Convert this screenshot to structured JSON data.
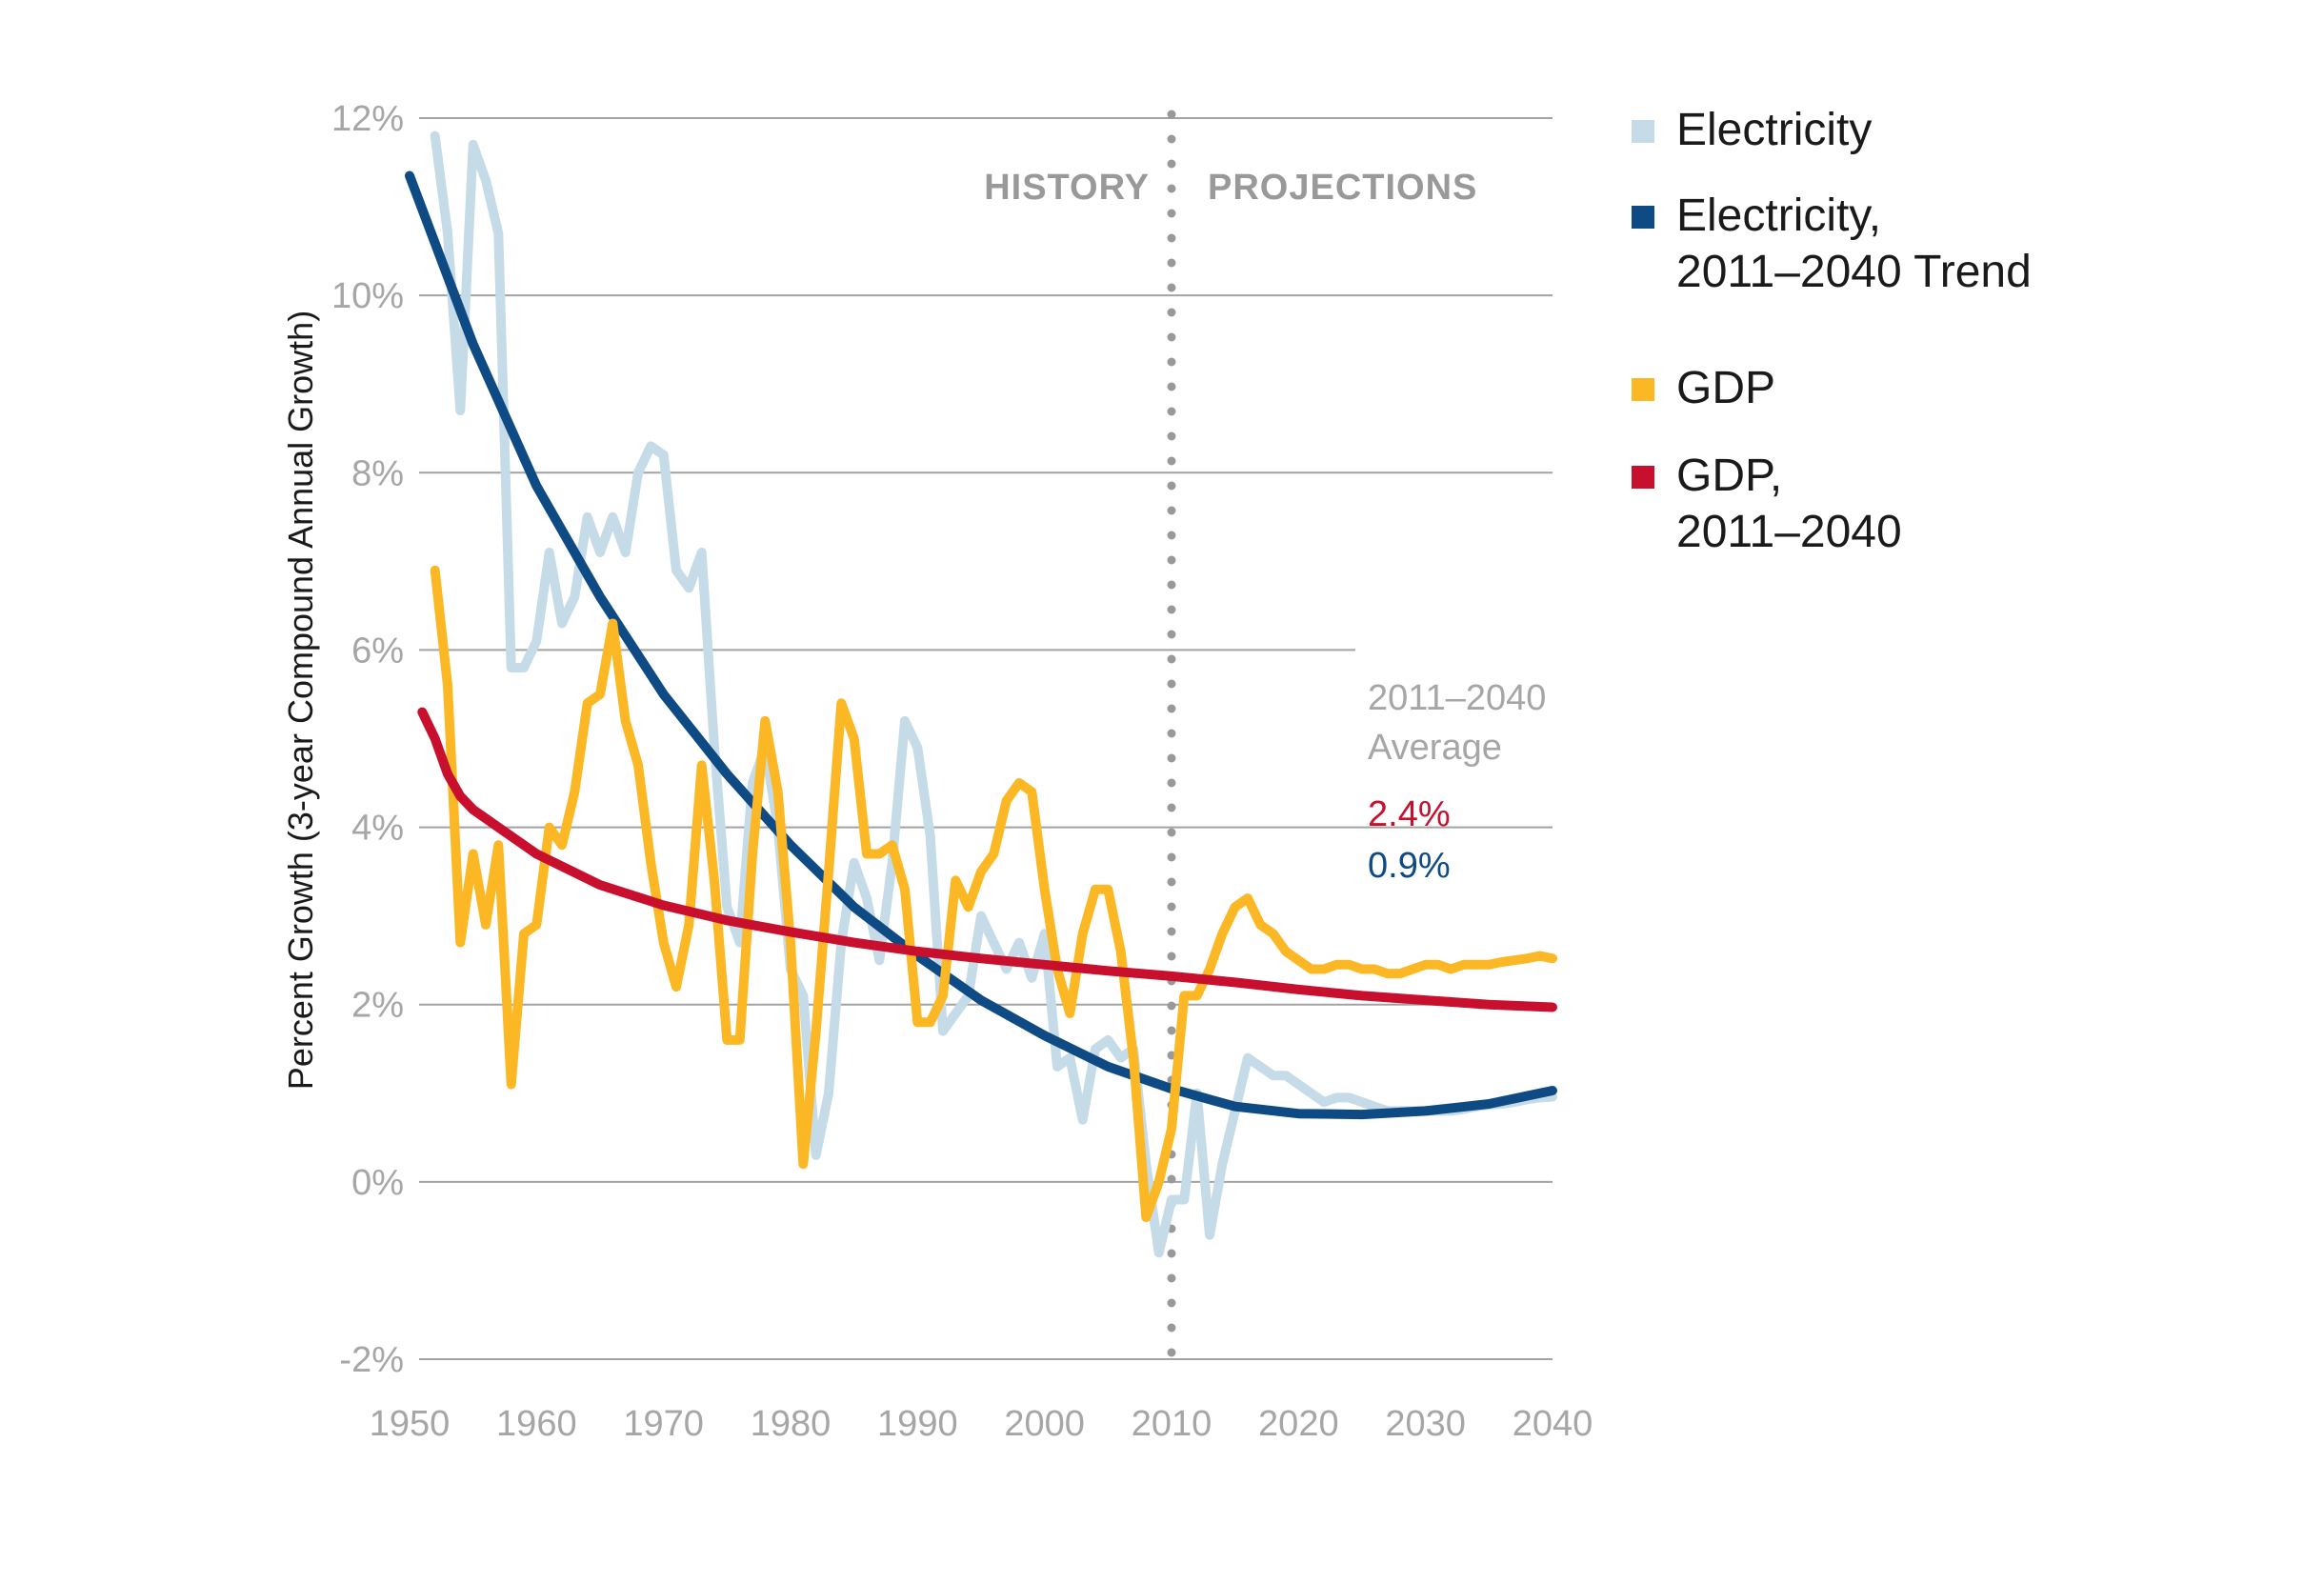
{
  "chart_data": {
    "type": "line",
    "ylabel": "Percent Growth (3-year Compound Annual Growth)",
    "xlim": [
      1950,
      2040
    ],
    "ylim": [
      -2,
      12
    ],
    "x_ticks": [
      "1950",
      "1960",
      "1970",
      "1980",
      "1990",
      "2000",
      "2010",
      "2020",
      "2030",
      "2040"
    ],
    "y_ticks": [
      "-2%",
      "0%",
      "2%",
      "4%",
      "6%",
      "8%",
      "10%",
      "12%"
    ],
    "y_tick_values": [
      -2,
      0,
      2,
      4,
      6,
      8,
      10,
      12
    ],
    "grid": true,
    "divider": {
      "x": 2010,
      "left_label": "HISTORY",
      "right_label": "PROJECTIONS"
    },
    "average_annotation": {
      "label_line1": "2011–2040",
      "label_line2": "Average",
      "values": [
        {
          "text": "2.4%",
          "color": "#c8102e"
        },
        {
          "text": "0.9%",
          "color": "#0e4a84"
        }
      ]
    },
    "series": [
      {
        "name": "Electricity",
        "color": "#c5dbe8",
        "x": [
          1952,
          1953,
          1954,
          1955,
          1956,
          1957,
          1958,
          1959,
          1960,
          1961,
          1962,
          1963,
          1964,
          1965,
          1966,
          1967,
          1968,
          1969,
          1970,
          1971,
          1972,
          1973,
          1974,
          1975,
          1976,
          1977,
          1978,
          1979,
          1980,
          1981,
          1982,
          1983,
          1984,
          1985,
          1986,
          1987,
          1988,
          1989,
          1990,
          1991,
          1992,
          1993,
          1994,
          1995,
          1996,
          1997,
          1998,
          1999,
          2000,
          2001,
          2002,
          2003,
          2004,
          2005,
          2006,
          2007,
          2008,
          2009,
          2010,
          2011,
          2012,
          2013,
          2014,
          2015,
          2016,
          2017,
          2018,
          2019,
          2020,
          2021,
          2022,
          2023,
          2024,
          2025,
          2026,
          2027,
          2028,
          2029,
          2030,
          2031,
          2032,
          2033,
          2034,
          2035,
          2036,
          2037,
          2038,
          2039,
          2040
        ],
        "values": [
          11.8,
          10.7,
          8.7,
          11.7,
          11.3,
          10.7,
          5.8,
          5.8,
          6.1,
          7.1,
          6.3,
          6.6,
          7.5,
          7.1,
          7.5,
          7.1,
          8.0,
          8.3,
          8.2,
          6.9,
          6.7,
          7.1,
          4.9,
          3.1,
          2.7,
          4.5,
          4.9,
          4.0,
          2.4,
          2.1,
          0.3,
          1.0,
          2.7,
          3.6,
          3.2,
          2.5,
          3.6,
          5.2,
          4.9,
          3.9,
          1.7,
          1.9,
          2.1,
          3.0,
          2.7,
          2.4,
          2.7,
          2.3,
          2.8,
          1.3,
          1.4,
          0.7,
          1.5,
          1.6,
          1.4,
          1.5,
          0.2,
          -0.8,
          -0.2,
          -0.2,
          1.0,
          -0.6,
          0.2,
          0.8,
          1.4,
          1.3,
          1.2,
          1.2,
          1.1,
          1.0,
          0.9,
          0.95,
          0.95,
          0.9,
          0.85,
          0.8,
          0.8,
          0.8,
          0.8,
          0.8,
          0.8,
          0.82,
          0.85,
          0.87,
          0.88,
          0.9,
          0.93,
          0.95,
          0.96
        ]
      },
      {
        "name": "Electricity, 2011–2040 Trend",
        "color": "#0e4a84",
        "x": [
          1950,
          1955,
          1960,
          1965,
          1970,
          1975,
          1980,
          1985,
          1990,
          1995,
          2000,
          2005,
          2010,
          2015,
          2020,
          2025,
          2030,
          2035,
          2040
        ],
        "values": [
          11.35,
          9.45,
          7.85,
          6.6,
          5.5,
          4.6,
          3.8,
          3.1,
          2.55,
          2.05,
          1.65,
          1.3,
          1.05,
          0.85,
          0.77,
          0.76,
          0.8,
          0.88,
          1.03
        ]
      },
      {
        "name": "GDP",
        "color": "#fbb824",
        "x": [
          1952,
          1953,
          1954,
          1955,
          1956,
          1957,
          1958,
          1959,
          1960,
          1961,
          1962,
          1963,
          1964,
          1965,
          1966,
          1967,
          1968,
          1969,
          1970,
          1971,
          1972,
          1973,
          1974,
          1975,
          1976,
          1977,
          1978,
          1979,
          1980,
          1981,
          1982,
          1983,
          1984,
          1985,
          1986,
          1987,
          1988,
          1989,
          1990,
          1991,
          1992,
          1993,
          1994,
          1995,
          1996,
          1997,
          1998,
          1999,
          2000,
          2001,
          2002,
          2003,
          2004,
          2005,
          2006,
          2007,
          2008,
          2009,
          2010,
          2011,
          2012,
          2013,
          2014,
          2015,
          2016,
          2017,
          2018,
          2019,
          2020,
          2021,
          2022,
          2023,
          2024,
          2025,
          2026,
          2027,
          2028,
          2029,
          2030,
          2031,
          2032,
          2033,
          2034,
          2035,
          2036,
          2037,
          2038,
          2039,
          2040
        ],
        "values": [
          6.9,
          5.6,
          2.7,
          3.7,
          2.9,
          3.8,
          1.1,
          2.8,
          2.9,
          4.0,
          3.8,
          4.4,
          5.4,
          5.5,
          6.3,
          5.2,
          4.7,
          3.6,
          2.7,
          2.2,
          2.9,
          4.7,
          3.4,
          1.6,
          1.6,
          3.7,
          5.2,
          4.4,
          2.7,
          0.2,
          1.7,
          3.5,
          5.4,
          5.0,
          3.7,
          3.7,
          3.8,
          3.3,
          1.8,
          1.8,
          2.1,
          3.4,
          3.1,
          3.5,
          3.7,
          4.3,
          4.5,
          4.4,
          3.3,
          2.4,
          1.9,
          2.8,
          3.3,
          3.3,
          2.6,
          1.4,
          -0.4,
          0.0,
          0.6,
          2.1,
          2.1,
          2.4,
          2.8,
          3.1,
          3.2,
          2.9,
          2.8,
          2.6,
          2.5,
          2.4,
          2.4,
          2.45,
          2.45,
          2.4,
          2.4,
          2.35,
          2.35,
          2.4,
          2.45,
          2.45,
          2.4,
          2.45,
          2.45,
          2.45,
          2.48,
          2.5,
          2.52,
          2.55,
          2.52
        ]
      },
      {
        "name": "GDP, 2011–2040",
        "color": "#c8102e",
        "x": [
          1951,
          1952,
          1953,
          1954,
          1955,
          1957,
          1960,
          1965,
          1970,
          1975,
          1980,
          1985,
          1990,
          1995,
          2000,
          2005,
          2010,
          2015,
          2020,
          2025,
          2030,
          2035,
          2040
        ],
        "values": [
          5.3,
          5.0,
          4.6,
          4.35,
          4.2,
          4.0,
          3.7,
          3.35,
          3.12,
          2.95,
          2.82,
          2.7,
          2.6,
          2.52,
          2.45,
          2.38,
          2.32,
          2.25,
          2.17,
          2.1,
          2.05,
          2.0,
          1.97
        ]
      }
    ],
    "legend": {
      "placement": "right",
      "items": [
        {
          "lines": [
            "Electricity"
          ],
          "color": "#c5dbe8"
        },
        {
          "lines": [
            "Electricity,",
            "2011–2040 Trend"
          ],
          "color": "#0e4a84"
        },
        {
          "lines": [
            "GDP"
          ],
          "color": "#fbb824"
        },
        {
          "lines": [
            "GDP,",
            "2011–2040"
          ],
          "color": "#c8102e"
        }
      ]
    }
  }
}
